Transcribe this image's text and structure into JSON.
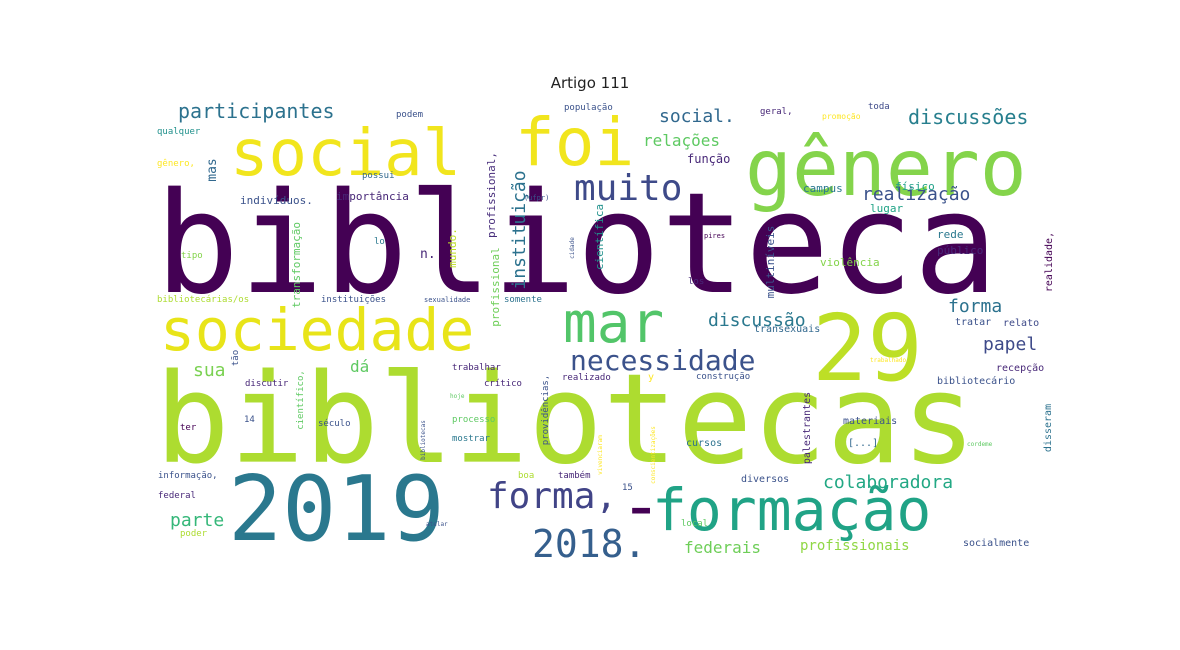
{
  "title": "Artigo 111",
  "palette": [
    "#440154",
    "#3b528b",
    "#21918c",
    "#5ec962",
    "#fde725"
  ],
  "words": [
    {
      "text": "biblioteca",
      "color": "#440154"
    },
    {
      "text": "bibliotecas",
      "color": "#addc30"
    },
    {
      "text": "2019",
      "color": "#2a788e"
    },
    {
      "text": "29",
      "color": "#bddf26"
    },
    {
      "text": "social",
      "color": "#f1e51d"
    },
    {
      "text": "foi",
      "color": "#f1e51d"
    },
    {
      "text": "gênero",
      "color": "#84d44b"
    },
    {
      "text": "sociedade",
      "color": "#e8e419"
    },
    {
      "text": "mar",
      "color": "#52c569"
    },
    {
      "text": "formação",
      "color": "#20a386"
    },
    {
      "text": "-",
      "color": "#440154"
    },
    {
      "text": "muito",
      "color": "#3e4a89"
    },
    {
      "text": "forma,",
      "color": "#414487"
    },
    {
      "text": "2018.",
      "color": "#355f8d"
    },
    {
      "text": "necessidade",
      "color": "#3b528b"
    },
    {
      "text": "participantes",
      "color": "#2c728e"
    },
    {
      "text": "discussões",
      "color": "#277f8e"
    },
    {
      "text": "social.",
      "color": "#31688e"
    },
    {
      "text": "relações",
      "color": "#5ec962"
    },
    {
      "text": "instituição",
      "color": "#2c728e"
    },
    {
      "text": "realização",
      "color": "#3b528b"
    },
    {
      "text": "colaboradora",
      "color": "#22a884"
    },
    {
      "text": "discussão",
      "color": "#2a788e"
    },
    {
      "text": "forma",
      "color": "#2c728e"
    },
    {
      "text": "papel",
      "color": "#3e4a89"
    },
    {
      "text": "parte",
      "color": "#35b779"
    },
    {
      "text": "sua",
      "color": "#7ad151"
    },
    {
      "text": "dá",
      "color": "#5ec962"
    },
    {
      "text": "federais",
      "color": "#6ece58"
    },
    {
      "text": "profissionais",
      "color": "#8fd744"
    },
    {
      "text": "função",
      "color": "#482878"
    },
    {
      "text": "mas",
      "color": "#31688e"
    },
    {
      "text": "n.",
      "color": "#482878"
    },
    {
      "text": "indivíduos.",
      "color": "#3b528b"
    },
    {
      "text": "importância",
      "color": "#482878"
    },
    {
      "text": "transformação",
      "color": "#5ec962"
    },
    {
      "text": "profissional,",
      "color": "#472d7b"
    },
    {
      "text": "mundo.",
      "color": "#bddf26"
    },
    {
      "text": "profissional",
      "color": "#6ece58"
    },
    {
      "text": "científica",
      "color": "#21918c"
    },
    {
      "text": "multiníveis",
      "color": "#3b528b"
    },
    {
      "text": "campus",
      "color": "#2a788e"
    },
    {
      "text": "físico",
      "color": "#1fa188"
    },
    {
      "text": "lugar",
      "color": "#20a386"
    },
    {
      "text": "rede",
      "color": "#2a788e"
    },
    {
      "text": "público",
      "color": "#482878"
    },
    {
      "text": "violência",
      "color": "#84d44b"
    },
    {
      "text": "realidade,",
      "color": "#440154"
    },
    {
      "text": "tratar",
      "color": "#3b528b"
    },
    {
      "text": "relato",
      "color": "#3e4a89"
    },
    {
      "text": "transexuais",
      "color": "#31688e"
    },
    {
      "text": "recepção",
      "color": "#482878"
    },
    {
      "text": "bibliotecário",
      "color": "#3b528b"
    },
    {
      "text": "materiais",
      "color": "#3b528b"
    },
    {
      "text": "[...]",
      "color": "#31688e"
    },
    {
      "text": "disseram",
      "color": "#2c728e"
    },
    {
      "text": "palestrantes",
      "color": "#482878"
    },
    {
      "text": "cursos",
      "color": "#2c728e"
    },
    {
      "text": "diversos",
      "color": "#3b528b"
    },
    {
      "text": "também",
      "color": "#482878"
    },
    {
      "text": "socialmente",
      "color": "#3b528b"
    },
    {
      "text": "qualquer",
      "color": "#21918c"
    },
    {
      "text": "gênero,",
      "color": "#fde725"
    },
    {
      "text": "podem",
      "color": "#3b528b"
    },
    {
      "text": "possui",
      "color": "#31688e"
    },
    {
      "text": "população",
      "color": "#3b528b"
    },
    {
      "text": "geral,",
      "color": "#482878"
    },
    {
      "text": "promoção",
      "color": "#fde725"
    },
    {
      "text": "toda",
      "color": "#3e4a89"
    },
    {
      "text": "tipo",
      "color": "#84d44b"
    },
    {
      "text": "lo",
      "color": "#2a788e"
    },
    {
      "text": "bibliotecárias/os",
      "color": "#addc30"
    },
    {
      "text": "instituições",
      "color": "#3b528b"
    },
    {
      "text": "sexualidade",
      "color": "#3b528b"
    },
    {
      "text": "somente",
      "color": "#2c728e"
    },
    {
      "text": "los",
      "color": "#482878"
    },
    {
      "text": "pires",
      "color": "#440154"
    },
    {
      "text": "(ufpr)",
      "color": "#3b528b"
    },
    {
      "text": "cidade",
      "color": "#3b528b"
    },
    {
      "text": "tão",
      "color": "#3b528b"
    },
    {
      "text": "discutir",
      "color": "#482878"
    },
    {
      "text": "trabalhar",
      "color": "#482878"
    },
    {
      "text": "crítico",
      "color": "#482878"
    },
    {
      "text": "realizado",
      "color": "#482878"
    },
    {
      "text": "y",
      "color": "#fde725"
    },
    {
      "text": "construção",
      "color": "#3b528b"
    },
    {
      "text": "trabalhado",
      "color": "#fde725"
    },
    {
      "text": "científico,",
      "color": "#5ec962"
    },
    {
      "text": "século",
      "color": "#3b528b"
    },
    {
      "text": "14",
      "color": "#3b528b"
    },
    {
      "text": "ter",
      "color": "#440154"
    },
    {
      "text": "processo",
      "color": "#5ec962"
    },
    {
      "text": "mostrar",
      "color": "#2a788e"
    },
    {
      "text": "providências,",
      "color": "#3b528b"
    },
    {
      "text": "bibliotecas",
      "color": "#3b528b"
    },
    {
      "text": "cordeme",
      "color": "#5ec962"
    },
    {
      "text": "informação,",
      "color": "#3b528b"
    },
    {
      "text": "federal",
      "color": "#482878"
    },
    {
      "text": "poder",
      "color": "#addc30"
    },
    {
      "text": "boa",
      "color": "#addc30"
    },
    {
      "text": "15",
      "color": "#3b528b"
    },
    {
      "text": "local",
      "color": "#5ec962"
    },
    {
      "text": "atelar",
      "color": "#3b528b"
    },
    {
      "text": "conscientizações",
      "color": "#fde725"
    },
    {
      "text": "vivenciaram",
      "color": "#fde725"
    },
    {
      "text": "hoje",
      "color": "#5ec962"
    }
  ]
}
